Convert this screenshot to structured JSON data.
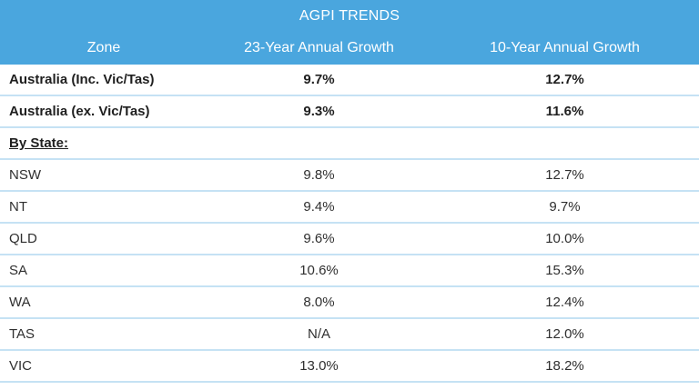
{
  "title": "AGPI TRENDS",
  "header": {
    "zone": "Zone",
    "col23": "23-Year Annual Growth",
    "col10": "10-Year Annual Growth"
  },
  "rows": [
    {
      "zone": "Australia (Inc. Vic/Tas)",
      "g23": "9.7%",
      "g10": "12.7%",
      "style": "bold"
    },
    {
      "zone": "Australia (ex. Vic/Tas)",
      "g23": "9.3%",
      "g10": "11.6%",
      "style": "bold"
    },
    {
      "zone": "By State:",
      "g23": "",
      "g10": "",
      "style": "section"
    },
    {
      "zone": "NSW",
      "g23": "9.8%",
      "g10": "12.7%",
      "style": ""
    },
    {
      "zone": "NT",
      "g23": "9.4%",
      "g10": "9.7%",
      "style": ""
    },
    {
      "zone": "QLD",
      "g23": "9.6%",
      "g10": "10.0%",
      "style": ""
    },
    {
      "zone": "SA",
      "g23": "10.6%",
      "g10": "15.3%",
      "style": ""
    },
    {
      "zone": "WA",
      "g23": "8.0%",
      "g10": "12.4%",
      "style": ""
    },
    {
      "zone": "TAS",
      "g23": "N/A",
      "g10": "12.0%",
      "style": ""
    },
    {
      "zone": "VIC",
      "g23": "13.0%",
      "g10": "18.2%",
      "style": ""
    }
  ]
}
